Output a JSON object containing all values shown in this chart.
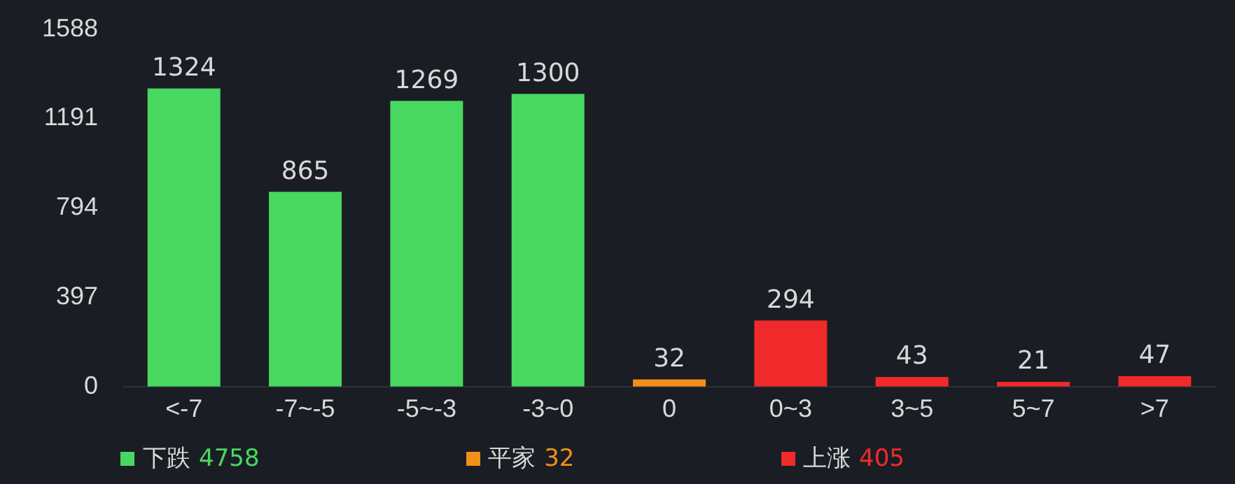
{
  "chart_data": {
    "type": "bar",
    "categories": [
      "<-7",
      "-7~-5",
      "-5~-3",
      "-3~0",
      "0",
      "0~3",
      "3~5",
      "5~7",
      ">7"
    ],
    "series": [
      {
        "name": "下跌 4758",
        "color": "#48d860",
        "values": [
          1324,
          865,
          1269,
          1300,
          null,
          null,
          null,
          null,
          null
        ]
      },
      {
        "name": "平家 32",
        "color": "#f0901a",
        "values": [
          null,
          null,
          null,
          null,
          32,
          null,
          null,
          null,
          null
        ]
      },
      {
        "name": "上涨 405",
        "color": "#f02a2a",
        "values": [
          null,
          null,
          null,
          null,
          null,
          294,
          43,
          21,
          47
        ]
      }
    ],
    "ylim": [
      0,
      1588
    ],
    "yticks": [
      0,
      397,
      794,
      1191,
      1588
    ],
    "grid": false,
    "legend": "bottom",
    "data_labels": true
  }
}
